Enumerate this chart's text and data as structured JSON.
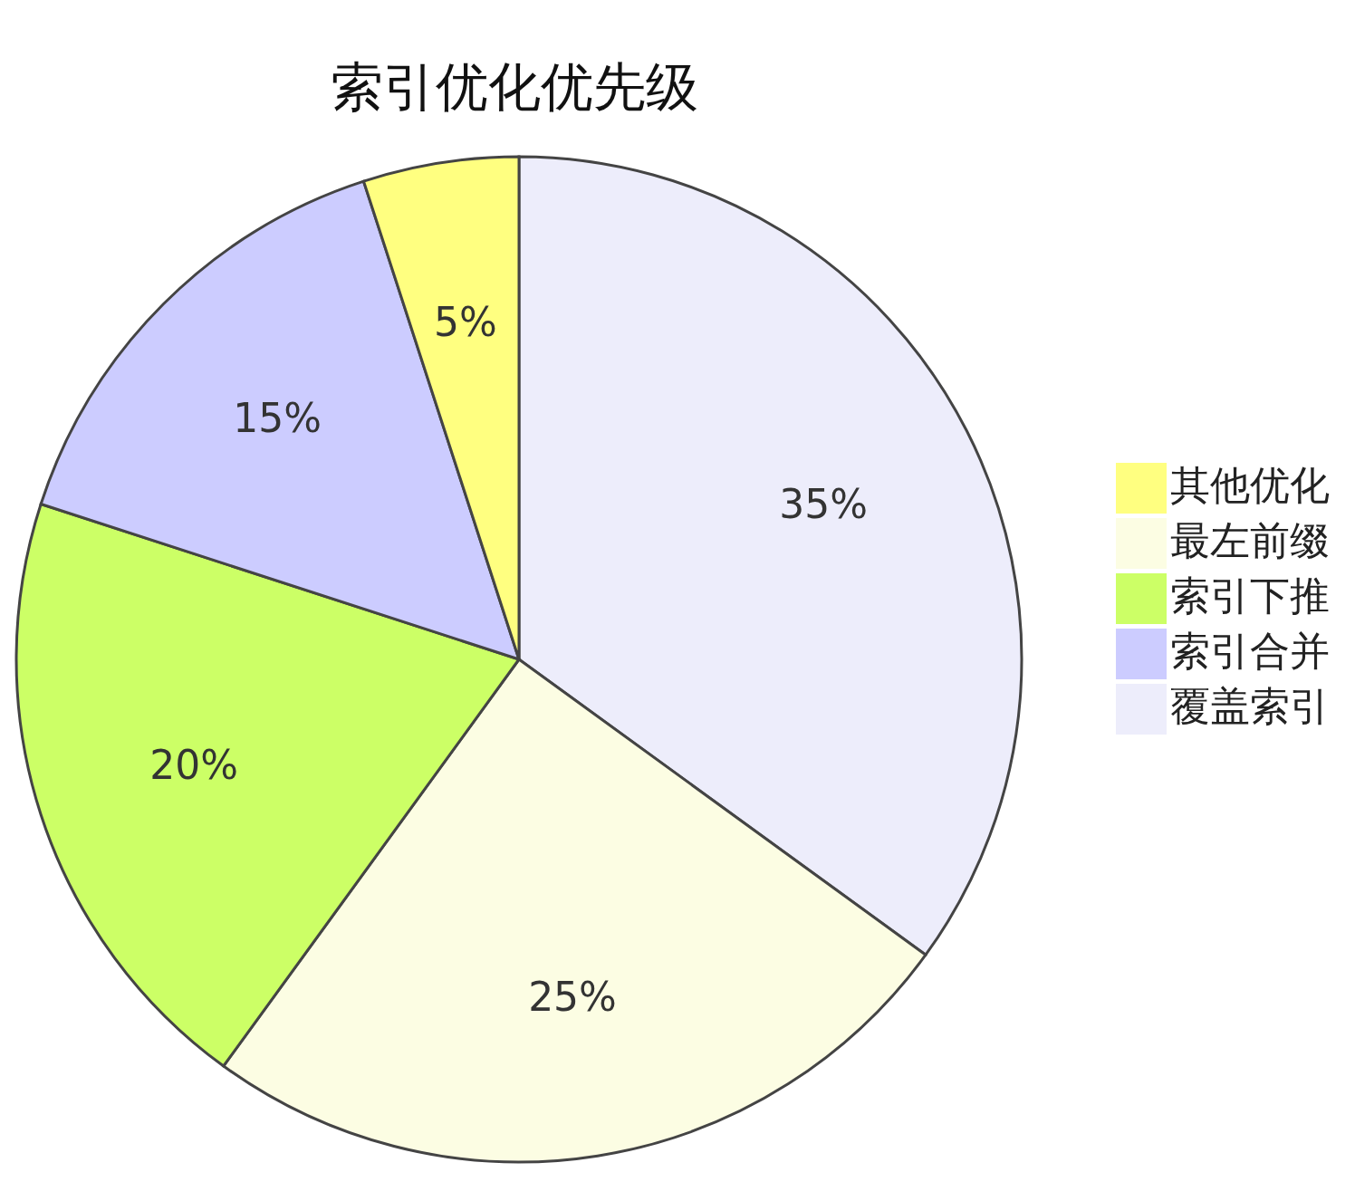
{
  "chart_data": {
    "type": "pie",
    "title": "索引优化优先级",
    "categories": [
      "覆盖索引",
      "最左前缀",
      "索引下推",
      "索引合并",
      "其他优化"
    ],
    "values": [
      35,
      25,
      20,
      15,
      5
    ],
    "value_labels": [
      "35%",
      "25%",
      "20%",
      "15%",
      "5%"
    ],
    "colors": [
      "#ededfb",
      "#fcfde3",
      "#ccff66",
      "#ccccff",
      "#ffff80"
    ],
    "legend": "right"
  }
}
